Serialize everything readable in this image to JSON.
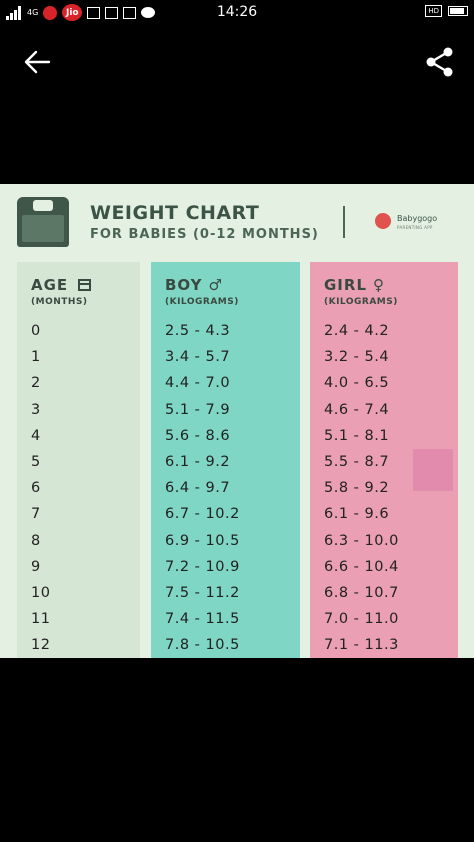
{
  "status_bar": {
    "time": "14:26",
    "network": "4G",
    "carrier": "Jio",
    "hd_label": "HD"
  },
  "icons": {
    "back": "arrow-left-icon",
    "share": "share-icon"
  },
  "chart": {
    "title": "WEIGHT CHART",
    "subtitle": "FOR BABIES (0-12 MONTHS)",
    "brand_name": "Babygogo",
    "brand_sub": "PARENTING APP",
    "columns": {
      "age": {
        "label": "AGE",
        "sublabel": "(MONTHS)"
      },
      "boy": {
        "label": "BOY",
        "symbol": "♂",
        "sublabel": "(KILOGRAMS)"
      },
      "girl": {
        "label": "GIRL",
        "symbol": "♀",
        "sublabel": "(KILOGRAMS)"
      }
    },
    "rows": [
      {
        "age": "0",
        "boy": "2.5 - 4.3",
        "girl": "2.4 - 4.2"
      },
      {
        "age": "1",
        "boy": "3.4 - 5.7",
        "girl": "3.2 - 5.4"
      },
      {
        "age": "2",
        "boy": "4.4 - 7.0",
        "girl": "4.0 - 6.5"
      },
      {
        "age": "3",
        "boy": "5.1 - 7.9",
        "girl": "4.6 - 7.4"
      },
      {
        "age": "4",
        "boy": "5.6 - 8.6",
        "girl": "5.1 - 8.1"
      },
      {
        "age": "5",
        "boy": "6.1 - 9.2",
        "girl": "5.5 - 8.7"
      },
      {
        "age": "6",
        "boy": "6.4 - 9.7",
        "girl": "5.8 - 9.2"
      },
      {
        "age": "7",
        "boy": "6.7 - 10.2",
        "girl": "6.1 - 9.6"
      },
      {
        "age": "8",
        "boy": "6.9 - 10.5",
        "girl": "6.3 - 10.0"
      },
      {
        "age": "9",
        "boy": "7.2 - 10.9",
        "girl": "6.6 - 10.4"
      },
      {
        "age": "10",
        "boy": "7.5 - 11.2",
        "girl": "6.8 - 10.7"
      },
      {
        "age": "11",
        "boy": "7.4 - 11.5",
        "girl": "7.0 - 11.0"
      },
      {
        "age": "12",
        "boy": "7.8 - 10.5",
        "girl": "7.1 - 11.3"
      }
    ]
  }
}
